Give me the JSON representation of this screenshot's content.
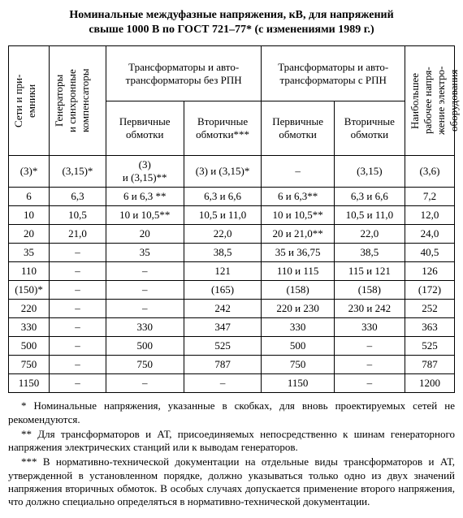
{
  "title_line1": "Номинальные междуфазные напряжения, кВ, для напряжений",
  "title_line2": "свыше 1000 В по ГОСТ 721–77* (с изменениями 1989 г.)",
  "headers": {
    "col1": "Сети и при-\nемники",
    "col2": "Генераторы\nи синхронные\nкомпенсаторы",
    "group1": "Трансформаторы и авто-\nтрансформаторы без РПН",
    "group1_sub1": "Первичные обмотки",
    "group1_sub2": "Вторичные обмотки***",
    "group2": "Трансформаторы и авто-\nтрансформаторы с РПН",
    "group2_sub1": "Первичные обмотки",
    "group2_sub2": "Вторичные обмотки",
    "col7": "Наибольшее\nрабочее напря-\nжение электро-\nоборудования"
  },
  "rows": [
    {
      "c1": "(3)*",
      "c2": "(3,15)*",
      "c3": "(3)\nи (3,15)**",
      "c4": "(3) и (3,15)*",
      "c5": "–",
      "c6": "(3,15)",
      "c7": "(3,6)"
    },
    {
      "c1": "6",
      "c2": "6,3",
      "c3": "6 и 6,3 **",
      "c4": "6,3 и 6,6",
      "c5": "6 и 6,3**",
      "c6": "6,3 и 6,6",
      "c7": "7,2"
    },
    {
      "c1": "10",
      "c2": "10,5",
      "c3": "10 и 10,5**",
      "c4": "10,5 и 11,0",
      "c5": "10 и 10,5**",
      "c6": "10,5 и 11,0",
      "c7": "12,0"
    },
    {
      "c1": "20",
      "c2": "21,0",
      "c3": "20",
      "c4": "22,0",
      "c5": "20 и 21,0**",
      "c6": "22,0",
      "c7": "24,0"
    },
    {
      "c1": "35",
      "c2": "–",
      "c3": "35",
      "c4": "38,5",
      "c5": "35 и 36,75",
      "c6": "38,5",
      "c7": "40,5"
    },
    {
      "c1": "110",
      "c2": "–",
      "c3": "–",
      "c4": "121",
      "c5": "110 и 115",
      "c6": "115 и 121",
      "c7": "126"
    },
    {
      "c1": "(150)*",
      "c2": "–",
      "c3": "–",
      "c4": "(165)",
      "c5": "(158)",
      "c6": "(158)",
      "c7": "(172)"
    },
    {
      "c1": "220",
      "c2": "–",
      "c3": "–",
      "c4": "242",
      "c5": "220 и 230",
      "c6": "230 и 242",
      "c7": "252"
    },
    {
      "c1": "330",
      "c2": "–",
      "c3": "330",
      "c4": "347",
      "c5": "330",
      "c6": "330",
      "c7": "363"
    },
    {
      "c1": "500",
      "c2": "–",
      "c3": "500",
      "c4": "525",
      "c5": "500",
      "c6": "–",
      "c7": "525"
    },
    {
      "c1": "750",
      "c2": "–",
      "c3": "750",
      "c4": "787",
      "c5": "750",
      "c6": "–",
      "c7": "787"
    },
    {
      "c1": "1150",
      "c2": "–",
      "c3": "–",
      "c4": "–",
      "c5": "1150",
      "c6": "–",
      "c7": "1200"
    }
  ],
  "notes": {
    "n1": "* Номинальные напряжения, указанные в скобках, для вновь проектируемых сетей не рекомендуются.",
    "n2": "** Для трансформаторов и АТ, присоединяемых непосредственно к шинам генераторного напряжения электрических станций или к выводам генераторов.",
    "n3": "*** В нормативно-технической документации на отдельные виды трансформаторов и АТ, утвержденной в установленном порядке, должно указываться только одно из двух значений напряжения вторичных обмоток. В особых случаях допускается применение второго напряжения, что должно специально определяться в нормативно-технической документации."
  }
}
